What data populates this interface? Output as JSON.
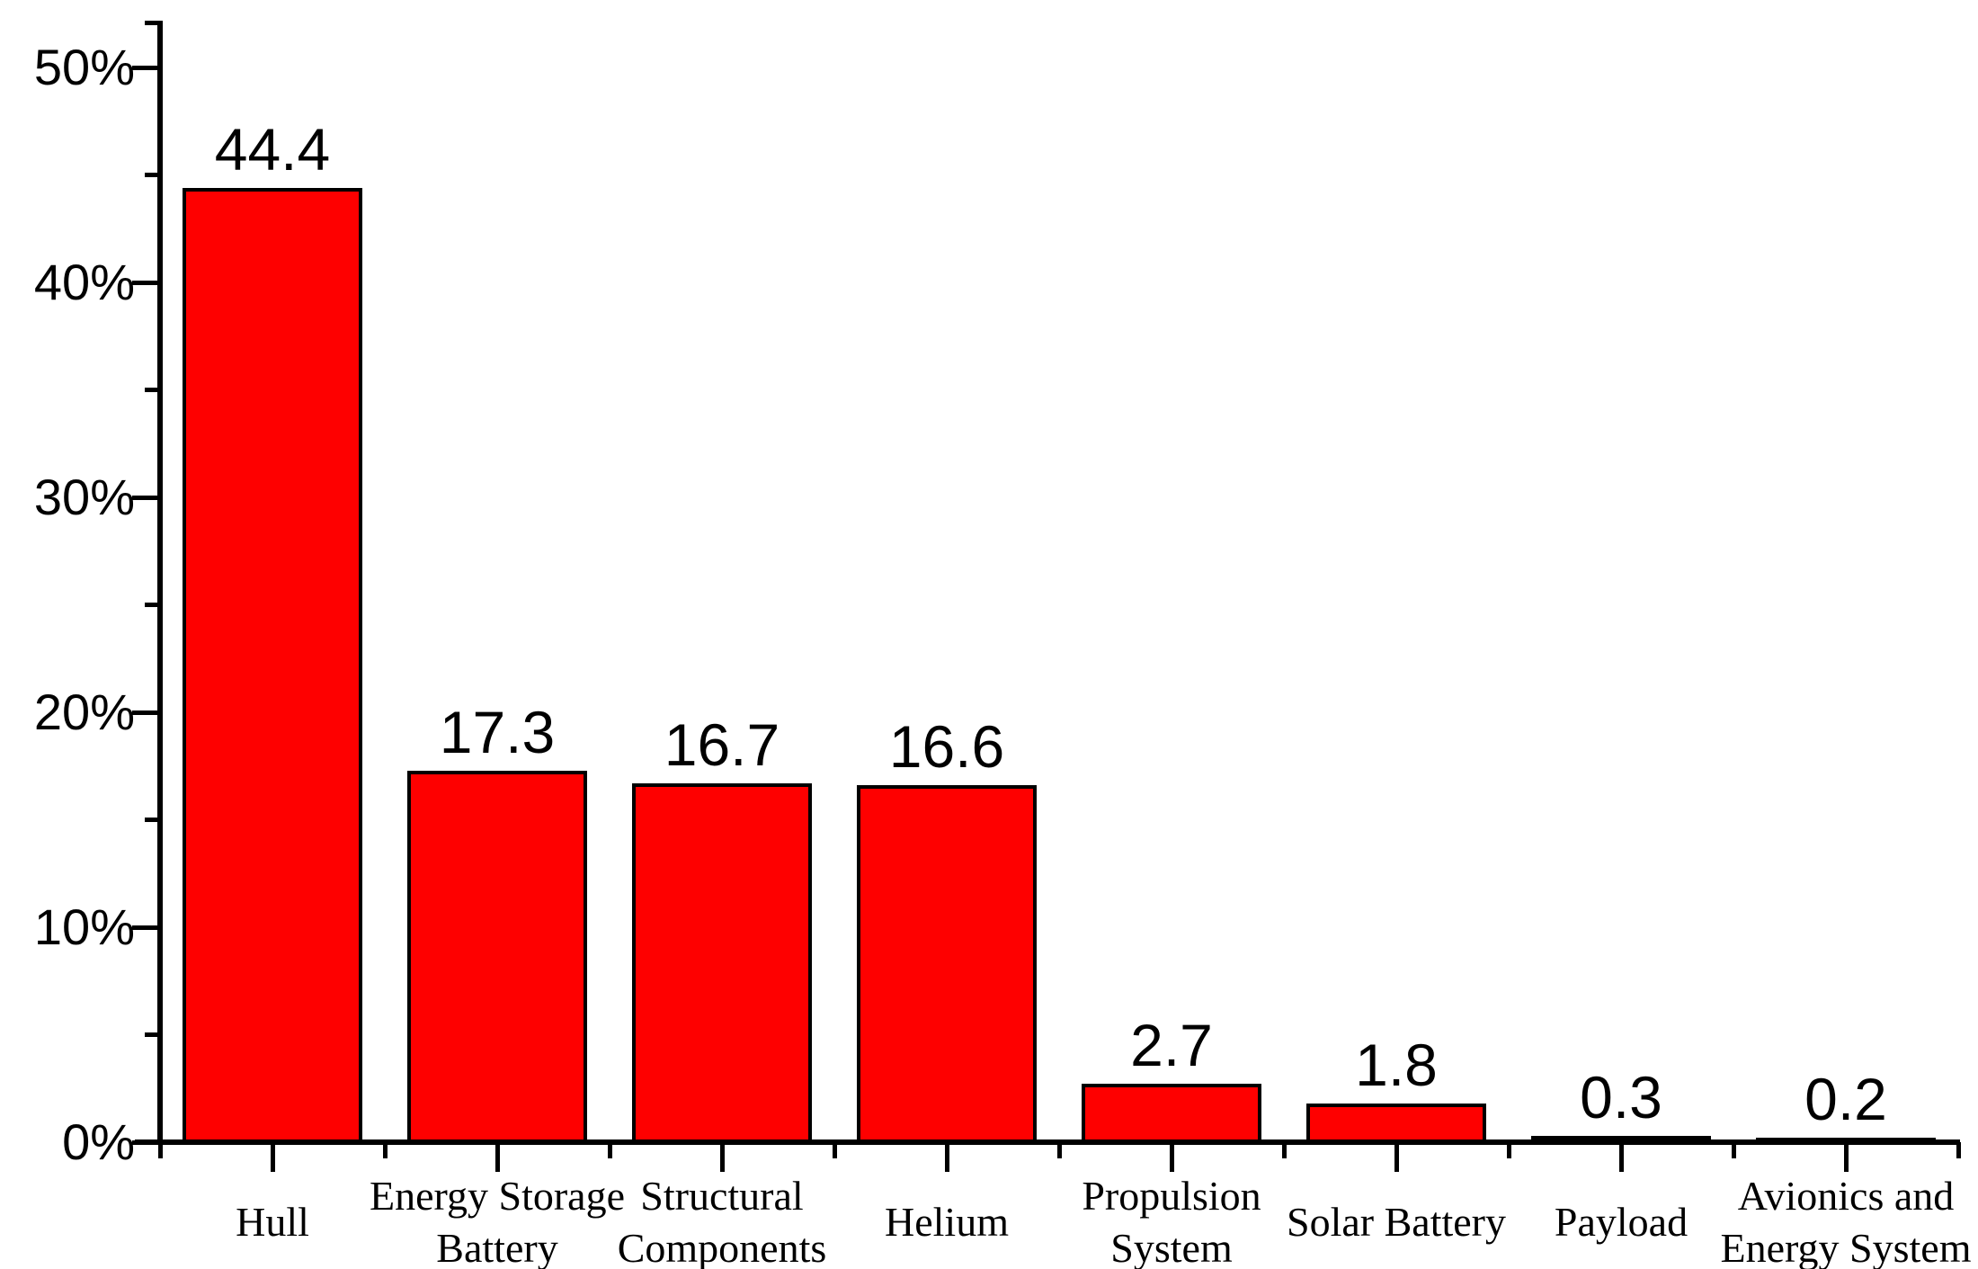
{
  "chart_data": {
    "type": "bar",
    "title": "",
    "xlabel": "",
    "ylabel": "",
    "unit": "%",
    "categories": [
      "Hull",
      "Energy Storage Battery",
      "Structural Components",
      "Helium",
      "Propulsion System",
      "Solar Battery",
      "Payload",
      "Avionics and Energy System"
    ],
    "category_label_lines": [
      [
        "Hull"
      ],
      [
        "Energy Storage",
        "Battery"
      ],
      [
        "Structural",
        "Components"
      ],
      [
        "Helium"
      ],
      [
        "Propulsion",
        "System"
      ],
      [
        "Solar Battery"
      ],
      [
        "Payload"
      ],
      [
        "Avionics and",
        "Energy System"
      ]
    ],
    "values": [
      44.4,
      17.3,
      16.7,
      16.6,
      2.7,
      1.8,
      0.3,
      0.2
    ],
    "value_labels": [
      "44.4",
      "17.3",
      "16.7",
      "16.6",
      "2.7",
      "1.8",
      "0.3",
      "0.2"
    ],
    "ylim": [
      0,
      52.5
    ],
    "yticks_major": [
      {
        "value": 0,
        "label": "0%"
      },
      {
        "value": 10,
        "label": "10%"
      },
      {
        "value": 20,
        "label": "20%"
      },
      {
        "value": 30,
        "label": "30%"
      },
      {
        "value": 40,
        "label": "40%"
      },
      {
        "value": 50,
        "label": "50%"
      }
    ],
    "yticks_minor": [
      5,
      15,
      25,
      35,
      45
    ],
    "grid": false,
    "legend": null,
    "bar_color": "#fe0000",
    "bar_border_color": "#000000",
    "axis_color": "#000000",
    "text_color": "#000000",
    "background_color": "#ffffff"
  }
}
